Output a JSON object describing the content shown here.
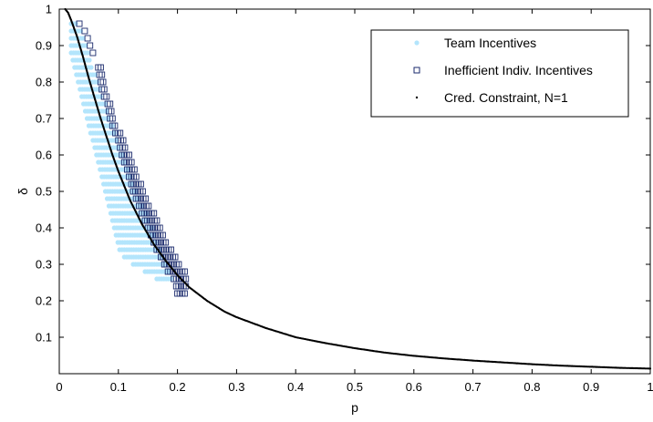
{
  "chart_data": {
    "type": "scatter",
    "xlabel": "p",
    "ylabel": "δ",
    "xlim": [
      0,
      1
    ],
    "ylim": [
      0,
      1
    ],
    "xticks": [
      0,
      0.1,
      0.2,
      0.3,
      0.4,
      0.5,
      0.6,
      0.7,
      0.8,
      0.9,
      1
    ],
    "xtick_labels": [
      "0",
      "0.1",
      "0.2",
      "0.3",
      "0.4",
      "0.5",
      "0.6",
      "0.7",
      "0.8",
      "0.9",
      "1"
    ],
    "yticks": [
      0.1,
      0.2,
      0.3,
      0.4,
      0.5,
      0.6,
      0.7,
      0.8,
      0.9,
      1
    ],
    "ytick_labels": [
      "0.1",
      "0.2",
      "0.3",
      "0.4",
      "0.5",
      "0.6",
      "0.7",
      "0.8",
      "0.9",
      "1"
    ],
    "grid": false,
    "legend_position": "top-right",
    "series": [
      {
        "name": "Team Incentives",
        "marker": "filled-circle",
        "color": "#b3e5fc",
        "rows": [
          {
            "y": 0.96,
            "x_min": 0.02,
            "x_max": 0.031
          },
          {
            "y": 0.94,
            "x_min": 0.02,
            "x_max": 0.036
          },
          {
            "y": 0.92,
            "x_min": 0.02,
            "x_max": 0.04
          },
          {
            "y": 0.9,
            "x_min": 0.02,
            "x_max": 0.044
          },
          {
            "y": 0.88,
            "x_min": 0.02,
            "x_max": 0.048
          },
          {
            "y": 0.86,
            "x_min": 0.023,
            "x_max": 0.053
          },
          {
            "y": 0.84,
            "x_min": 0.026,
            "x_max": 0.057
          },
          {
            "y": 0.82,
            "x_min": 0.029,
            "x_max": 0.061
          },
          {
            "y": 0.8,
            "x_min": 0.032,
            "x_max": 0.065
          },
          {
            "y": 0.78,
            "x_min": 0.035,
            "x_max": 0.069
          },
          {
            "y": 0.76,
            "x_min": 0.038,
            "x_max": 0.073
          },
          {
            "y": 0.74,
            "x_min": 0.041,
            "x_max": 0.077
          },
          {
            "y": 0.72,
            "x_min": 0.044,
            "x_max": 0.081
          },
          {
            "y": 0.7,
            "x_min": 0.047,
            "x_max": 0.086
          },
          {
            "y": 0.68,
            "x_min": 0.05,
            "x_max": 0.09
          },
          {
            "y": 0.66,
            "x_min": 0.053,
            "x_max": 0.094
          },
          {
            "y": 0.64,
            "x_min": 0.057,
            "x_max": 0.098
          },
          {
            "y": 0.62,
            "x_min": 0.06,
            "x_max": 0.103
          },
          {
            "y": 0.6,
            "x_min": 0.063,
            "x_max": 0.108
          },
          {
            "y": 0.58,
            "x_min": 0.066,
            "x_max": 0.112
          },
          {
            "y": 0.56,
            "x_min": 0.069,
            "x_max": 0.117
          },
          {
            "y": 0.54,
            "x_min": 0.072,
            "x_max": 0.121
          },
          {
            "y": 0.52,
            "x_min": 0.075,
            "x_max": 0.126
          },
          {
            "y": 0.5,
            "x_min": 0.078,
            "x_max": 0.131
          },
          {
            "y": 0.48,
            "x_min": 0.081,
            "x_max": 0.136
          },
          {
            "y": 0.46,
            "x_min": 0.084,
            "x_max": 0.142
          },
          {
            "y": 0.44,
            "x_min": 0.087,
            "x_max": 0.147
          },
          {
            "y": 0.42,
            "x_min": 0.09,
            "x_max": 0.152
          },
          {
            "y": 0.4,
            "x_min": 0.093,
            "x_max": 0.157
          },
          {
            "y": 0.38,
            "x_min": 0.096,
            "x_max": 0.162
          },
          {
            "y": 0.36,
            "x_min": 0.099,
            "x_max": 0.166
          },
          {
            "y": 0.34,
            "x_min": 0.102,
            "x_max": 0.171
          },
          {
            "y": 0.32,
            "x_min": 0.11,
            "x_max": 0.176
          },
          {
            "y": 0.3,
            "x_min": 0.125,
            "x_max": 0.181
          },
          {
            "y": 0.28,
            "x_min": 0.145,
            "x_max": 0.186
          },
          {
            "y": 0.26,
            "x_min": 0.165,
            "x_max": 0.19
          }
        ]
      },
      {
        "name": "Inefficient Indiv. Incentives",
        "marker": "open-square",
        "color": "#1a2a6c",
        "rows": [
          {
            "y": 0.96,
            "x_min": 0.034,
            "x_max": 0.034
          },
          {
            "y": 0.94,
            "x_min": 0.043,
            "x_max": 0.043
          },
          {
            "y": 0.92,
            "x_min": 0.048,
            "x_max": 0.048
          },
          {
            "y": 0.9,
            "x_min": 0.052,
            "x_max": 0.052
          },
          {
            "y": 0.88,
            "x_min": 0.057,
            "x_max": 0.057
          },
          {
            "y": 0.84,
            "x_min": 0.066,
            "x_max": 0.07
          },
          {
            "y": 0.82,
            "x_min": 0.068,
            "x_max": 0.072
          },
          {
            "y": 0.8,
            "x_min": 0.07,
            "x_max": 0.075
          },
          {
            "y": 0.78,
            "x_min": 0.072,
            "x_max": 0.079
          },
          {
            "y": 0.76,
            "x_min": 0.076,
            "x_max": 0.083
          },
          {
            "y": 0.74,
            "x_min": 0.082,
            "x_max": 0.086
          },
          {
            "y": 0.72,
            "x_min": 0.084,
            "x_max": 0.088
          },
          {
            "y": 0.7,
            "x_min": 0.086,
            "x_max": 0.093
          },
          {
            "y": 0.68,
            "x_min": 0.09,
            "x_max": 0.097
          },
          {
            "y": 0.66,
            "x_min": 0.095,
            "x_max": 0.104
          },
          {
            "y": 0.64,
            "x_min": 0.1,
            "x_max": 0.108
          },
          {
            "y": 0.62,
            "x_min": 0.103,
            "x_max": 0.113
          },
          {
            "y": 0.6,
            "x_min": 0.106,
            "x_max": 0.118
          },
          {
            "y": 0.58,
            "x_min": 0.11,
            "x_max": 0.124
          },
          {
            "y": 0.56,
            "x_min": 0.115,
            "x_max": 0.128
          },
          {
            "y": 0.54,
            "x_min": 0.118,
            "x_max": 0.133
          },
          {
            "y": 0.52,
            "x_min": 0.122,
            "x_max": 0.138
          },
          {
            "y": 0.5,
            "x_min": 0.125,
            "x_max": 0.143
          },
          {
            "y": 0.48,
            "x_min": 0.13,
            "x_max": 0.148
          },
          {
            "y": 0.46,
            "x_min": 0.135,
            "x_max": 0.154
          },
          {
            "y": 0.44,
            "x_min": 0.14,
            "x_max": 0.16
          },
          {
            "y": 0.42,
            "x_min": 0.145,
            "x_max": 0.165
          },
          {
            "y": 0.4,
            "x_min": 0.15,
            "x_max": 0.17
          },
          {
            "y": 0.38,
            "x_min": 0.155,
            "x_max": 0.176
          },
          {
            "y": 0.36,
            "x_min": 0.16,
            "x_max": 0.182
          },
          {
            "y": 0.34,
            "x_min": 0.165,
            "x_max": 0.189
          },
          {
            "y": 0.32,
            "x_min": 0.172,
            "x_max": 0.196
          },
          {
            "y": 0.3,
            "x_min": 0.178,
            "x_max": 0.204
          },
          {
            "y": 0.28,
            "x_min": 0.184,
            "x_max": 0.212
          },
          {
            "y": 0.26,
            "x_min": 0.194,
            "x_max": 0.214
          },
          {
            "y": 0.24,
            "x_min": 0.198,
            "x_max": 0.214
          },
          {
            "y": 0.22,
            "x_min": 0.2,
            "x_max": 0.214
          }
        ]
      },
      {
        "name": "Cred. Constraint, N=1",
        "marker": "dot",
        "color": "#000000",
        "points": [
          {
            "x": 0.01,
            "y": 1.0
          },
          {
            "x": 0.015,
            "y": 0.99
          },
          {
            "x": 0.02,
            "y": 0.97
          },
          {
            "x": 0.03,
            "y": 0.925
          },
          {
            "x": 0.04,
            "y": 0.87
          },
          {
            "x": 0.05,
            "y": 0.81
          },
          {
            "x": 0.06,
            "y": 0.755
          },
          {
            "x": 0.07,
            "y": 0.7
          },
          {
            "x": 0.08,
            "y": 0.65
          },
          {
            "x": 0.09,
            "y": 0.6
          },
          {
            "x": 0.1,
            "y": 0.555
          },
          {
            "x": 0.12,
            "y": 0.475
          },
          {
            "x": 0.14,
            "y": 0.41
          },
          {
            "x": 0.16,
            "y": 0.355
          },
          {
            "x": 0.18,
            "y": 0.31
          },
          {
            "x": 0.2,
            "y": 0.27
          },
          {
            "x": 0.22,
            "y": 0.237
          },
          {
            "x": 0.25,
            "y": 0.2
          },
          {
            "x": 0.28,
            "y": 0.17
          },
          {
            "x": 0.3,
            "y": 0.155
          },
          {
            "x": 0.35,
            "y": 0.125
          },
          {
            "x": 0.4,
            "y": 0.1
          },
          {
            "x": 0.45,
            "y": 0.084
          },
          {
            "x": 0.5,
            "y": 0.07
          },
          {
            "x": 0.55,
            "y": 0.058
          },
          {
            "x": 0.6,
            "y": 0.049
          },
          {
            "x": 0.65,
            "y": 0.042
          },
          {
            "x": 0.7,
            "y": 0.036
          },
          {
            "x": 0.75,
            "y": 0.031
          },
          {
            "x": 0.8,
            "y": 0.026
          },
          {
            "x": 0.85,
            "y": 0.022
          },
          {
            "x": 0.9,
            "y": 0.019
          },
          {
            "x": 0.95,
            "y": 0.016
          },
          {
            "x": 1.0,
            "y": 0.014
          }
        ]
      }
    ]
  }
}
